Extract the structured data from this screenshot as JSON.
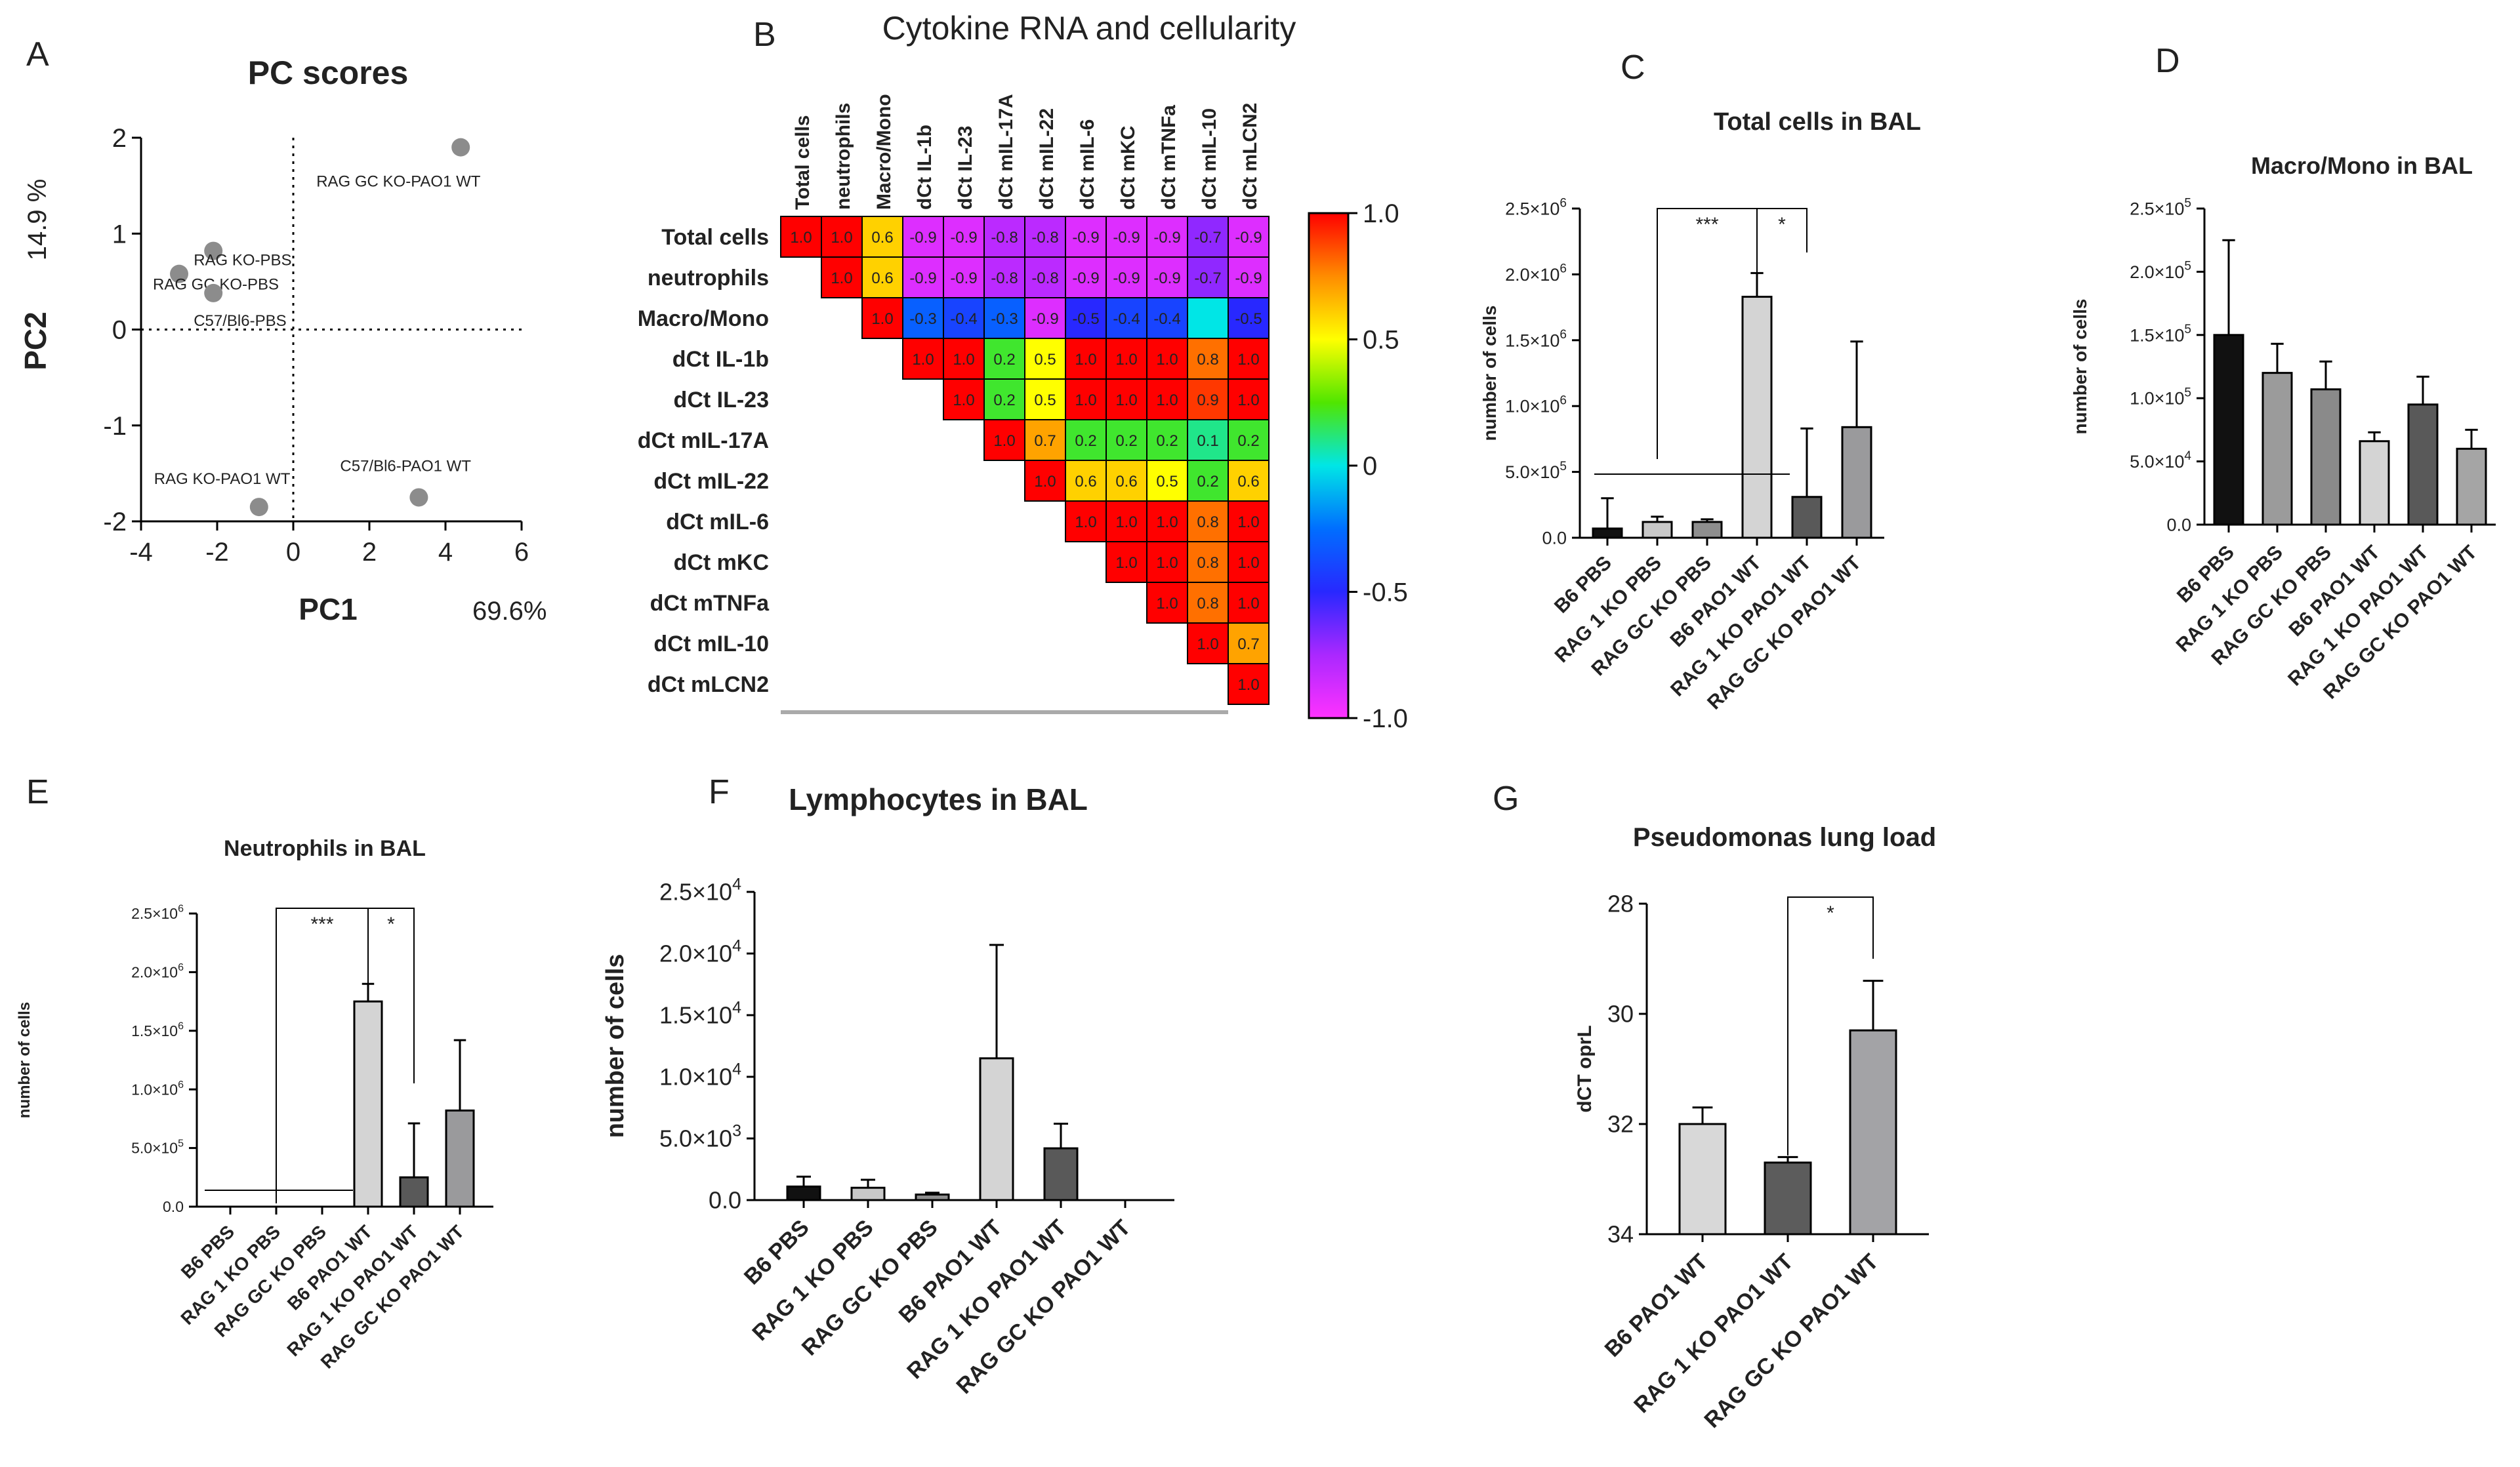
{
  "chart_data": [
    {
      "panel": "A",
      "type": "scatter",
      "title": "PC scores",
      "xlabel": "PC1",
      "ylabel": "PC2",
      "x_pct": "69.6%",
      "y_pct": "14.9 %",
      "xlim": [
        -4,
        6
      ],
      "ylim": [
        -2,
        2
      ],
      "xticks": [
        -4,
        -2,
        0,
        2,
        4,
        6
      ],
      "yticks": [
        2,
        1,
        0,
        -1,
        -2
      ],
      "points": [
        {
          "label": "RAG GC KO-PAO1 WT",
          "x": 4.4,
          "y": 1.9
        },
        {
          "label": "RAG KO-PBS",
          "x": -2.1,
          "y": 0.82
        },
        {
          "label": "RAG GC KO-PBS",
          "x": -3.0,
          "y": 0.58
        },
        {
          "label": "C57/Bl6-PBS",
          "x": -2.1,
          "y": 0.38
        },
        {
          "label": "C57/Bl6-PAO1 WT",
          "x": 3.3,
          "y": -1.75
        },
        {
          "label": "RAG KO-PAO1 WT",
          "x": -0.9,
          "y": -1.85
        }
      ]
    },
    {
      "panel": "B",
      "type": "heatmap",
      "title": "Cytokine RNA and cellularity",
      "labels": [
        "Total cells",
        "neutrophils",
        "Macro/Mono",
        "dCt IL-1b",
        "dCt IL-23",
        "dCt mIL-17A",
        "dCt mIL-22",
        "dCt mIL-6",
        "dCt mKC",
        "dCt mTNFa",
        "dCt mIL-10",
        "dCt mLCN2"
      ],
      "rows": [
        [
          "1.0",
          "1.0",
          "0.6",
          "-0.9",
          "-0.9",
          "-0.8",
          "-0.8",
          "-0.9",
          "-0.9",
          "-0.9",
          "-0.7",
          "-0.9"
        ],
        [
          "1.0",
          "0.6",
          "-0.9",
          "-0.9",
          "-0.8",
          "-0.8",
          "-0.9",
          "-0.9",
          "-0.9",
          "-0.7",
          "-0.9"
        ],
        [
          "1.0",
          "-0.3",
          "-0.4",
          "-0.3",
          "-0.9",
          "-0.5",
          "-0.4",
          "-0.4",
          "",
          "-0.5"
        ],
        [
          "1.0",
          "1.0",
          "0.2",
          "0.5",
          "1.0",
          "1.0",
          "1.0",
          "0.8",
          "1.0"
        ],
        [
          "1.0",
          "0.2",
          "0.5",
          "1.0",
          "1.0",
          "1.0",
          "0.9",
          "1.0"
        ],
        [
          "1.0",
          "0.7",
          "0.2",
          "0.2",
          "0.2",
          "0.1",
          "0.2"
        ],
        [
          "1.0",
          "0.6",
          "0.6",
          "0.5",
          "0.2",
          "0.6"
        ],
        [
          "1.0",
          "1.0",
          "1.0",
          "0.8",
          "1.0"
        ],
        [
          "1.0",
          "1.0",
          "0.8",
          "1.0"
        ],
        [
          "1.0",
          "0.8",
          "1.0"
        ],
        [
          "1.0",
          "0.7"
        ],
        [
          "1.0"
        ]
      ],
      "blank_cell_value": 0.0,
      "colorbar_ticks": [
        "1.0",
        "0.5",
        "0",
        "-0.5",
        "-1.0"
      ]
    },
    {
      "panel": "C",
      "type": "bar",
      "title": "Total cells in BAL",
      "ylabel": "number of cells",
      "ylim": [
        0,
        2500000
      ],
      "yticks": [
        {
          "v": 0,
          "m": "0.0",
          "e": ""
        },
        {
          "v": 500000,
          "m": "5.0×10",
          "e": "5"
        },
        {
          "v": 1000000,
          "m": "1.0×10",
          "e": "6"
        },
        {
          "v": 1500000,
          "m": "1.5×10",
          "e": "6"
        },
        {
          "v": 2000000,
          "m": "2.0×10",
          "e": "6"
        },
        {
          "v": 2500000,
          "m": "2.5×10",
          "e": "6"
        }
      ],
      "categories": [
        "B6 PBS",
        "RAG 1 KO PBS",
        "RAG GC KO PBS",
        "B6 PAO1 WT",
        "RAG 1 KO PAO1 WT",
        "RAG GC KO PAO1 WT"
      ],
      "values": [
        70000,
        120000,
        120000,
        1830000,
        310000,
        840000
      ],
      "errors": [
        230000,
        40000,
        20000,
        180000,
        520000,
        650000
      ],
      "colors": [
        "#111111",
        "#c8c8c8",
        "#8e8e8e",
        "#d4d4d4",
        "#595959",
        "#9a9a9c"
      ],
      "significance": [
        {
          "from": 1,
          "to": 3,
          "label": "***"
        },
        {
          "from": 3,
          "to": 4,
          "label": "*"
        }
      ]
    },
    {
      "panel": "D",
      "type": "bar",
      "title": "Macro/Mono in BAL",
      "ylabel": "number of cells",
      "ylim": [
        0,
        250000
      ],
      "yticks": [
        {
          "v": 0,
          "m": "0.0",
          "e": ""
        },
        {
          "v": 50000,
          "m": "5.0×10",
          "e": "4"
        },
        {
          "v": 100000,
          "m": "1.0×10",
          "e": "5"
        },
        {
          "v": 150000,
          "m": "1.5×10",
          "e": "5"
        },
        {
          "v": 200000,
          "m": "2.0×10",
          "e": "5"
        },
        {
          "v": 250000,
          "m": "2.5×10",
          "e": "5"
        }
      ],
      "categories": [
        "B6 PBS",
        "RAG 1 KO PBS",
        "RAG GC KO PBS",
        "B6 PAO1 WT",
        "RAG 1 KO PAO1 WT",
        "RAG GC KO PAO1 WT"
      ],
      "values": [
        150000,
        120000,
        107000,
        66000,
        95000,
        60000
      ],
      "errors": [
        75000,
        23000,
        22000,
        7000,
        22000,
        15000
      ],
      "colors": [
        "#111111",
        "#9b9b9b",
        "#8a8a8a",
        "#d4d4d4",
        "#595959",
        "#a5a5a5"
      ],
      "significance": []
    },
    {
      "panel": "E",
      "type": "bar",
      "title": "Neutrophils in BAL",
      "ylabel": "number of cells",
      "ylim": [
        0,
        2500000
      ],
      "yticks": [
        {
          "v": 0,
          "m": "0.0",
          "e": ""
        },
        {
          "v": 500000,
          "m": "5.0×10",
          "e": "5"
        },
        {
          "v": 1000000,
          "m": "1.0×10",
          "e": "6"
        },
        {
          "v": 1500000,
          "m": "1.5×10",
          "e": "6"
        },
        {
          "v": 2000000,
          "m": "2.0×10",
          "e": "6"
        },
        {
          "v": 2500000,
          "m": "2.5×10",
          "e": "6"
        }
      ],
      "categories": [
        "B6 PBS",
        "RAG 1 KO PBS",
        "RAG GC KO PBS",
        "B6 PAO1 WT",
        "RAG 1 KO PAO1 WT",
        "RAG GC KO PAO1 WT"
      ],
      "values": [
        0,
        0,
        0,
        1750000,
        250000,
        820000
      ],
      "errors": [
        0,
        0,
        0,
        150000,
        460000,
        600000
      ],
      "colors": [
        "#111111",
        "#c8c8c8",
        "#8e8e8e",
        "#d4d4d4",
        "#595959",
        "#9a9a9c"
      ],
      "significance": [
        {
          "from": 1,
          "to": 3,
          "label": "***"
        },
        {
          "from": 3,
          "to": 4,
          "label": "*"
        }
      ]
    },
    {
      "panel": "F",
      "type": "bar",
      "title": "Lymphocytes in BAL",
      "ylabel": "number of cells",
      "ylim": [
        0,
        25000
      ],
      "yticks": [
        {
          "v": 0,
          "m": "0.0",
          "e": ""
        },
        {
          "v": 5000,
          "m": "5.0×10",
          "e": "3"
        },
        {
          "v": 10000,
          "m": "1.0×10",
          "e": "4"
        },
        {
          "v": 15000,
          "m": "1.5×10",
          "e": "4"
        },
        {
          "v": 20000,
          "m": "2.0×10",
          "e": "4"
        },
        {
          "v": 25000,
          "m": "2.5×10",
          "e": "4"
        }
      ],
      "categories": [
        "B6 PBS",
        "RAG 1 KO PBS",
        "RAG GC KO PBS",
        "B6 PAO1 WT",
        "RAG 1 KO PAO1 WT",
        "RAG GC KO PAO1 WT"
      ],
      "values": [
        1100,
        1000,
        450,
        11500,
        4200,
        0
      ],
      "errors": [
        800,
        650,
        150,
        9200,
        2000,
        0
      ],
      "colors": [
        "#111111",
        "#c8c8c8",
        "#8e8e8e",
        "#d4d4d4",
        "#595959",
        "#9a9a9c"
      ],
      "significance": []
    },
    {
      "panel": "G",
      "type": "bar",
      "title": "Pseudomonas lung load",
      "ylabel": "dCT oprL",
      "ylim": [
        34,
        28
      ],
      "yticks": [
        {
          "v": 28,
          "m": "28",
          "e": ""
        },
        {
          "v": 30,
          "m": "30",
          "e": ""
        },
        {
          "v": 32,
          "m": "32",
          "e": ""
        },
        {
          "v": 34,
          "m": "34",
          "e": ""
        }
      ],
      "categories": [
        "B6 PAO1 WT",
        "RAG 1 KO PAO1 WT",
        "RAG GC KO PAO1 WT"
      ],
      "values": [
        32.0,
        32.7,
        30.3
      ],
      "errors": [
        0.3,
        0.1,
        0.9
      ],
      "colors": [
        "#d8d8d8",
        "#5c5c5c",
        "#a3a3a6"
      ],
      "significance": [
        {
          "from": 1,
          "to": 2,
          "label": "*"
        }
      ]
    }
  ]
}
